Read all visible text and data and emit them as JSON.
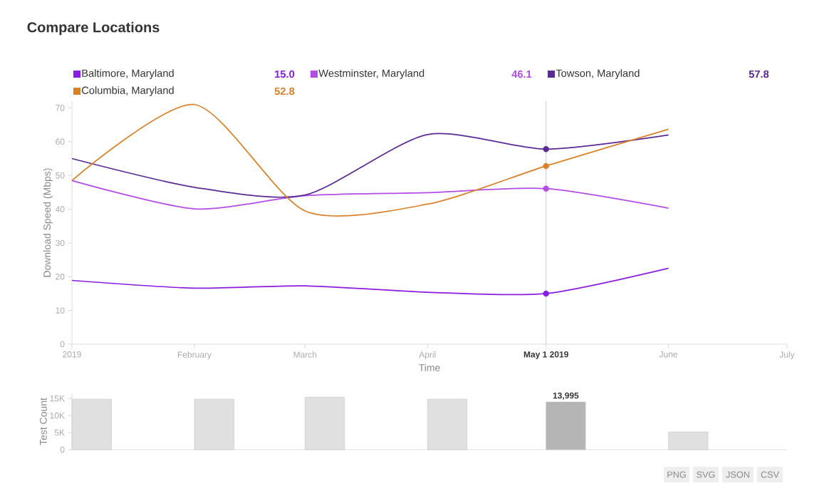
{
  "chart_data": [
    {
      "type": "line",
      "title": "Compare Locations",
      "xlabel": "Time",
      "ylabel": "Download Speed (Mbps)",
      "x": [
        "2019-01",
        "2019-02",
        "2019-03",
        "2019-04",
        "2019-05",
        "2019-06"
      ],
      "xlim": [
        "2019-01",
        "2019-07"
      ],
      "xticks": [
        {
          "value": "2019-01",
          "label": "2019"
        },
        {
          "value": "2019-02",
          "label": "February"
        },
        {
          "value": "2019-03",
          "label": "March"
        },
        {
          "value": "2019-04",
          "label": "April"
        },
        {
          "value": "2019-05",
          "label": "May 1 2019"
        },
        {
          "value": "2019-06",
          "label": "June"
        },
        {
          "value": "2019-07",
          "label": "July"
        }
      ],
      "ylim": [
        0,
        72
      ],
      "yticks": [
        0,
        10,
        20,
        30,
        40,
        50,
        60,
        70
      ],
      "legend": "top",
      "series": [
        {
          "name": "Baltimore, Maryland",
          "color": "#8a1de0",
          "values": [
            18.9,
            16.6,
            17.3,
            15.4,
            15.0,
            22.5
          ]
        },
        {
          "name": "Westminster, Maryland",
          "color": "#b44de6",
          "values": [
            48.5,
            40.1,
            44.0,
            44.9,
            46.1,
            40.3
          ]
        },
        {
          "name": "Towson, Maryland",
          "color": "#5b2a96",
          "values": [
            55.0,
            46.5,
            44.2,
            62.1,
            57.8,
            62.0
          ]
        },
        {
          "name": "Columbia, Maryland",
          "color": "#d9822b",
          "values": [
            48.5,
            71.0,
            39.5,
            41.5,
            52.8,
            63.7
          ]
        },
        {
          "type": "scatter",
          "x": [
            "2019-05",
            "2019-05",
            "2019-05",
            "2019-05"
          ],
          "values": [
            15.0,
            46.1,
            57.8,
            52.8
          ],
          "colors": [
            "#8a1de0",
            "#b44de6",
            "#5b2a96",
            "#d9822b"
          ]
        }
      ],
      "ref_lines": [
        {
          "axis": "x",
          "value": "2019-05",
          "color": "#cccccc"
        }
      ],
      "annotations": [
        "15.0",
        "46.1",
        "57.8",
        "52.8"
      ]
    },
    {
      "type": "bar",
      "ylabel": "Test Count",
      "x": [
        "2019-01-06",
        "2019-02-06",
        "2019-03-06",
        "2019-04-06",
        "2019-05-06",
        "2019-06-06"
      ],
      "xlim": [
        "2019-01",
        "2019-07"
      ],
      "ylim": [
        0,
        16500
      ],
      "yticks": [
        0,
        {
          "value": 5000,
          "label": "5K"
        },
        {
          "value": 10000,
          "label": "10K"
        },
        {
          "value": 15000,
          "label": "15K"
        }
      ],
      "values": [
        14800,
        14800,
        15400,
        14800,
        13995,
        5200
      ],
      "colors": [
        "#e0e0e0",
        "#e0e0e0",
        "#e0e0e0",
        "#e0e0e0",
        "#b5b5b5",
        "#e0e0e0"
      ],
      "value_labels": [
        null,
        null,
        null,
        null,
        "13,995",
        null
      ],
      "tick_labels": "y",
      "annotations": [
        "PNG",
        "SVG",
        "JSON",
        "CSV"
      ]
    }
  ]
}
